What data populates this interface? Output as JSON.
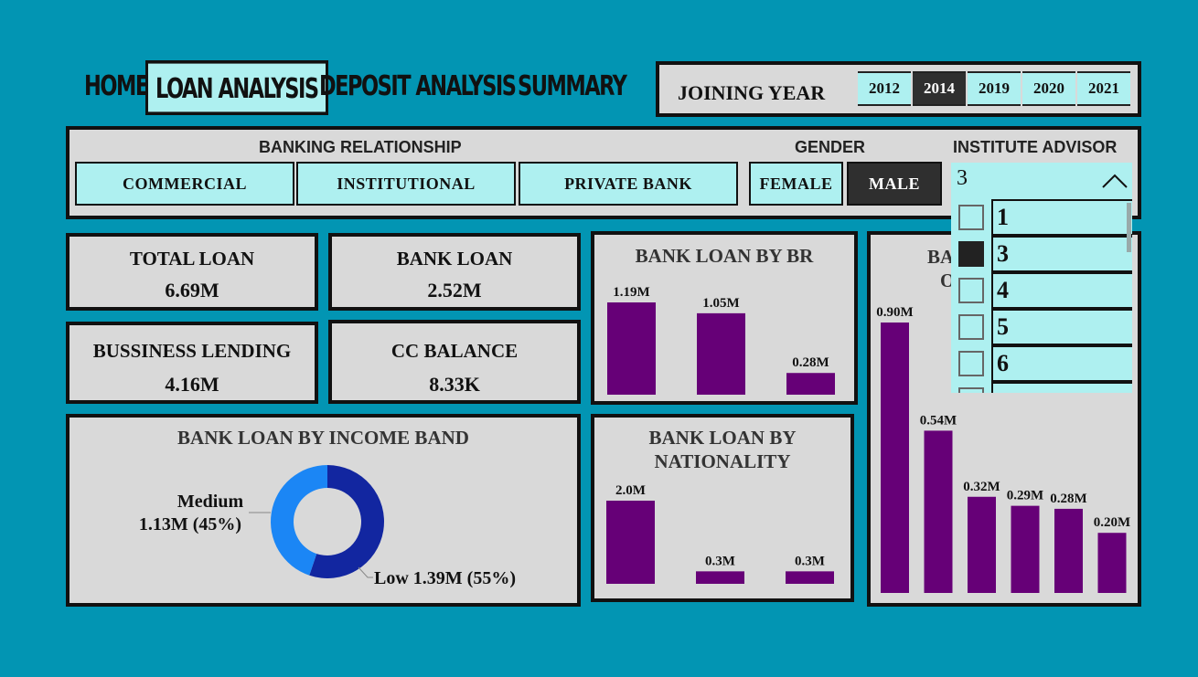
{
  "nav": {
    "home": "HOME",
    "loan_analysis": "LOAN ANALYSIS",
    "deposit_analysis": "DEPOSIT ANALYSIS",
    "summary": "SUMMARY"
  },
  "joining_year": {
    "label": "JOINING YEAR",
    "years": [
      "2012",
      "2014",
      "2019",
      "2020",
      "2021"
    ],
    "selected": "2014"
  },
  "filters": {
    "banking_relationship_label": "BANKING RELATIONSHIP",
    "relationships": [
      "COMMERCIAL",
      "INSTITUTIONAL",
      "PRIVATE BANK"
    ],
    "gender_label": "GENDER",
    "genders": [
      "FEMALE",
      "MALE"
    ],
    "gender_selected": "MALE",
    "institute_advisor_label": "INSTITUTE ADVISOR",
    "institute_advisor_value": "3",
    "advisor_options": [
      "1",
      "3",
      "4",
      "5",
      "6"
    ],
    "advisor_checked": "3"
  },
  "kpis": {
    "total_loan": {
      "title": "TOTAL LOAN",
      "value": "6.69M"
    },
    "bank_loan": {
      "title": "BANK LOAN",
      "value": "2.52M"
    },
    "business_lending": {
      "title": "BUSSINESS LENDING",
      "value": "4.16M"
    },
    "cc_balance": {
      "title": "CC BALANCE",
      "value": "8.33K"
    }
  },
  "charts": {
    "by_br_title": "BANK LOAN BY BR",
    "by_nationality_title_1": "BANK LOAN BY",
    "by_nationality_title_2": "NATIONALITY",
    "by_income_title": "BANK LOAN BY INCOME BAND",
    "partial_title_1": "BA",
    "partial_title_2": "O"
  },
  "colors": {
    "background": "#0295b3",
    "panel": "#d9d9d9",
    "accent": "#aef0f0",
    "bar": "#660077",
    "donut_low": "#1226a0",
    "donut_medium": "#1b86f5"
  },
  "chart_data": [
    {
      "type": "bar",
      "title": "BANK LOAN BY BR",
      "values": [
        1.19,
        1.05,
        0.28
      ],
      "labels": [
        "1.19M",
        "1.05M",
        "0.28M"
      ],
      "unit": "M"
    },
    {
      "type": "bar",
      "title": "BANK LOAN BY NATIONALITY",
      "values": [
        2.0,
        0.3,
        0.3
      ],
      "labels": [
        "2.0M",
        "0.3M",
        "0.3M"
      ],
      "unit": "M"
    },
    {
      "type": "pie",
      "title": "BANK LOAN BY INCOME BAND",
      "slices": [
        {
          "name": "Low",
          "value": 1.39,
          "percent": 55,
          "label": "Low 1.39M (55%)"
        },
        {
          "name": "Medium",
          "value": 1.13,
          "percent": 45,
          "label_line1": "Medium",
          "label_line2": "1.13M (45%)"
        }
      ]
    },
    {
      "type": "bar",
      "title": "BA O",
      "values": [
        0.9,
        0.54,
        0.32,
        0.29,
        0.28,
        0.2
      ],
      "labels": [
        "0.90M",
        "0.54M",
        "0.32M",
        "0.29M",
        "0.28M",
        "0.20M"
      ],
      "unit": "M"
    }
  ]
}
